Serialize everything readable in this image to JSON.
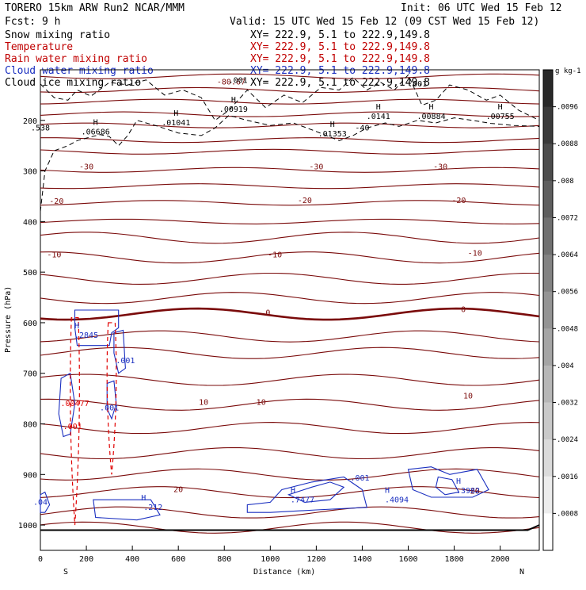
{
  "header": {
    "model": "TORERO   15km ARW   Run2    NCAR/MMM",
    "init": "Init: 06 UTC Wed 15 Feb 12",
    "fcst": "Fcst:    9 h",
    "valid": "Valid: 15 UTC Wed 15 Feb 12 (09 CST Wed 15 Feb 12)"
  },
  "colors": {
    "snow": "#000000",
    "temperature": "#7a0a0a",
    "rain": "#e00000",
    "cloud_water": "#1a2fc0",
    "cloud_ice": "#000000"
  },
  "legend": [
    {
      "name": "Snow mixing ratio",
      "xy": "XY= 222.9,  5.1 to 222.9,149.8",
      "color": "#000000"
    },
    {
      "name": "Temperature",
      "xy": "XY= 222.9,  5.1 to 222.9,149.8",
      "color": "#c00000"
    },
    {
      "name": "Rain water mixing ratio",
      "xy": "XY= 222.9,  5.1 to 222.9,149.8",
      "color": "#c00000"
    },
    {
      "name": "Cloud water mixing ratio",
      "xy": "XY= 222.9,  5.1 to 222.9,149.8",
      "color": "#1a2fc0"
    },
    {
      "name": "Cloud ice mixing ratio",
      "xy": "XY= 222.9,  5.1 to 222.9,149.8",
      "color": "#000000"
    }
  ],
  "chart_data": {
    "type": "cross-section",
    "xlabel": "Distance (km)",
    "ylabel": "Pressure (hPa)",
    "xlim": [
      0,
      2170
    ],
    "ylim": [
      1050,
      100
    ],
    "x_ticks": [
      0,
      200,
      400,
      600,
      800,
      1000,
      1200,
      1400,
      1600,
      1800,
      2000
    ],
    "y_ticks": [
      200,
      300,
      400,
      500,
      600,
      700,
      800,
      900,
      1000
    ],
    "x_endpoints": {
      "left": "S",
      "right": "N"
    },
    "temperature_labels": [
      {
        "text": "-80.67",
        "x": 830,
        "p": 129
      },
      {
        "text": "-30",
        "x": 200,
        "p": 297
      },
      {
        "text": "-30",
        "x": 1200,
        "p": 297
      },
      {
        "text": "-30",
        "x": 1740,
        "p": 297
      },
      {
        "text": "-20",
        "x": 70,
        "p": 365
      },
      {
        "text": "-20",
        "x": 1150,
        "p": 363
      },
      {
        "text": "-20",
        "x": 1820,
        "p": 363
      },
      {
        "text": "-10",
        "x": 60,
        "p": 471
      },
      {
        "text": "-10",
        "x": 1020,
        "p": 471
      },
      {
        "text": "-10",
        "x": 1890,
        "p": 468
      },
      {
        "text": "0",
        "x": 990,
        "p": 585
      },
      {
        "text": "0",
        "x": 1840,
        "p": 579
      },
      {
        "text": "10",
        "x": 710,
        "p": 762
      },
      {
        "text": "10",
        "x": 960,
        "p": 762
      },
      {
        "text": "10",
        "x": 1860,
        "p": 750
      },
      {
        "text": "20",
        "x": 600,
        "p": 935
      },
      {
        "text": "20",
        "x": 1890,
        "p": 938
      }
    ],
    "temperature_isotherms_p": [
      113,
      140,
      163,
      188,
      210,
      239,
      262,
      298,
      330,
      363,
      400,
      432,
      471,
      513,
      551,
      583,
      627,
      660,
      713,
      762,
      808,
      858,
      900,
      935,
      975,
      1005
    ],
    "ice_maxima": [
      {
        "label": "H",
        "value": ".06686",
        "x": 240,
        "p": 228
      },
      {
        "label": "H",
        "value": ".01041",
        "x": 590,
        "p": 210
      },
      {
        "label": "H",
        "value": ".00919",
        "x": 840,
        "p": 183
      },
      {
        "label": "H",
        "value": ".01353",
        "x": 1270,
        "p": 232
      },
      {
        "label": "H",
        "value": ".0141",
        "x": 1470,
        "p": 197
      },
      {
        "label": "H",
        "value": ".00884",
        "x": 1700,
        "p": 197
      },
      {
        "label": "H",
        "value": ".00755",
        "x": 2000,
        "p": 197
      }
    ],
    "ice_other_labels": [
      {
        "text": ".001",
        "x": 860,
        "p": 126
      },
      {
        "text": ".001",
        "x": 1640,
        "p": 133
      },
      {
        "text": ".538",
        "x": 0,
        "p": 220
      },
      {
        "text": "-40",
        "x": 1400,
        "p": 220
      }
    ],
    "cloud_water_maxima": [
      {
        "label": "H",
        "value": ".2845",
        "x": 200,
        "p": 630
      },
      {
        "label": "H",
        "value": ".212",
        "x": 490,
        "p": 970
      },
      {
        "label": "H",
        "value": ".7477",
        "x": 1140,
        "p": 955
      },
      {
        "label": "H",
        "value": ".4094",
        "x": 1550,
        "p": 955
      },
      {
        "label": "H",
        "value": ".3982",
        "x": 1860,
        "p": 937
      }
    ],
    "cloud_water_other_labels": [
      {
        "text": ".001",
        "x": 370,
        "p": 680
      },
      {
        "text": ".001",
        "x": 300,
        "p": 773
      },
      {
        "text": ".001",
        "x": 1390,
        "p": 912
      },
      {
        "text": ".04",
        "x": 0,
        "p": 960
      }
    ],
    "rain_labels": [
      {
        "text": ".00477",
        "x": 150,
        "p": 765
      },
      {
        "text": ".001",
        "x": 140,
        "p": 810
      }
    ],
    "colorbar": {
      "unit": "g kg-1",
      "ticks": [
        ".0096",
        ".0088",
        ".008",
        ".0072",
        ".0064",
        ".0056",
        ".0048",
        ".004",
        ".0032",
        ".0024",
        ".0016",
        ".0008"
      ]
    }
  }
}
